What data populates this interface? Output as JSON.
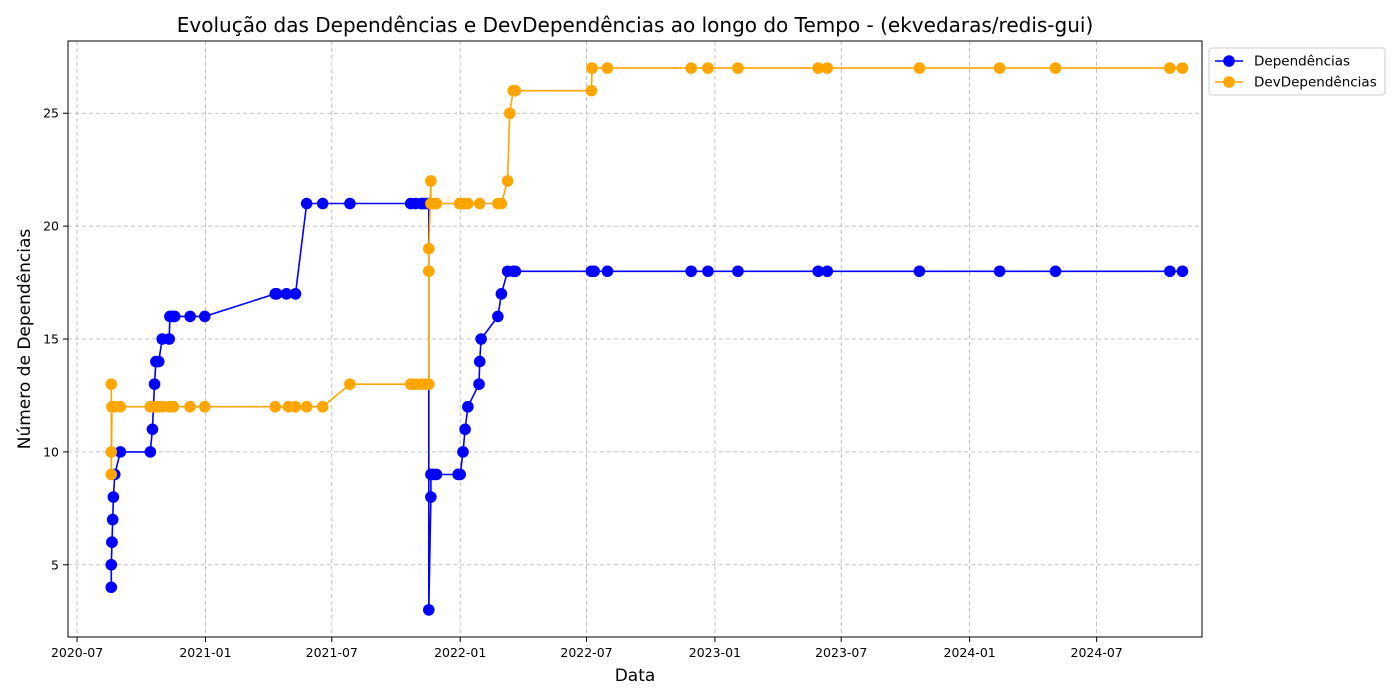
{
  "chart_data": {
    "type": "line",
    "title": "Evolução das Dependências e DevDependências ao longo do Tempo - (ekvedaras/redis-gui)",
    "xlabel": "Data",
    "ylabel": "Número de Dependências",
    "x_range": [
      "2020-06-18",
      "2024-11-29"
    ],
    "ylim": [
      1.8,
      28.2
    ],
    "grid": true,
    "legend_position": "top-right outside plot",
    "x_ticks": [
      {
        "date": "2020-07-01",
        "label": "2020-07"
      },
      {
        "date": "2021-01-01",
        "label": "2021-01"
      },
      {
        "date": "2021-07-01",
        "label": "2021-07"
      },
      {
        "date": "2022-01-01",
        "label": "2022-01"
      },
      {
        "date": "2022-07-01",
        "label": "2022-07"
      },
      {
        "date": "2023-01-01",
        "label": "2023-01"
      },
      {
        "date": "2023-07-01",
        "label": "2023-07"
      },
      {
        "date": "2024-01-01",
        "label": "2024-01"
      },
      {
        "date": "2024-07-01",
        "label": "2024-07"
      }
    ],
    "y_ticks": [
      5,
      10,
      15,
      20,
      25
    ],
    "series": [
      {
        "name": "Dependências",
        "color": "#0000ff",
        "points": [
          [
            "2020-08-19",
            4
          ],
          [
            "2020-08-19",
            5
          ],
          [
            "2020-08-20",
            6
          ],
          [
            "2020-08-20",
            6
          ],
          [
            "2020-08-21",
            7
          ],
          [
            "2020-08-22",
            8
          ],
          [
            "2020-08-24",
            9
          ],
          [
            "2020-09-01",
            10
          ],
          [
            "2020-10-14",
            10
          ],
          [
            "2020-10-17",
            11
          ],
          [
            "2020-10-20",
            13
          ],
          [
            "2020-10-22",
            14
          ],
          [
            "2020-10-26",
            14
          ],
          [
            "2020-10-31",
            15
          ],
          [
            "2020-11-10",
            15
          ],
          [
            "2020-11-11",
            16
          ],
          [
            "2020-11-13",
            16
          ],
          [
            "2020-11-16",
            16
          ],
          [
            "2020-11-18",
            16
          ],
          [
            "2020-12-10",
            16
          ],
          [
            "2020-12-31",
            16
          ],
          [
            "2021-04-11",
            17
          ],
          [
            "2021-04-13",
            17
          ],
          [
            "2021-04-27",
            17
          ],
          [
            "2021-05-10",
            17
          ],
          [
            "2021-05-26",
            21
          ],
          [
            "2021-06-18",
            21
          ],
          [
            "2021-07-27",
            21
          ],
          [
            "2021-10-22",
            21
          ],
          [
            "2021-10-29",
            21
          ],
          [
            "2021-11-06",
            21
          ],
          [
            "2021-11-09",
            21
          ],
          [
            "2021-11-13",
            21
          ],
          [
            "2021-11-17",
            21
          ],
          [
            "2021-11-17",
            3
          ],
          [
            "2021-11-20",
            8
          ],
          [
            "2021-11-20",
            9
          ],
          [
            "2021-11-23",
            9
          ],
          [
            "2021-11-28",
            9
          ],
          [
            "2021-12-29",
            9
          ],
          [
            "2022-01-01",
            9
          ],
          [
            "2022-01-05",
            10
          ],
          [
            "2022-01-08",
            11
          ],
          [
            "2022-01-12",
            12
          ],
          [
            "2022-01-28",
            13
          ],
          [
            "2022-01-29",
            14
          ],
          [
            "2022-01-31",
            15
          ],
          [
            "2022-02-24",
            16
          ],
          [
            "2022-03-01",
            17
          ],
          [
            "2022-03-10",
            18
          ],
          [
            "2022-03-18",
            18
          ],
          [
            "2022-03-21",
            18
          ],
          [
            "2022-07-08",
            18
          ],
          [
            "2022-07-12",
            18
          ],
          [
            "2022-07-31",
            18
          ],
          [
            "2022-11-28",
            18
          ],
          [
            "2022-12-22",
            18
          ],
          [
            "2023-02-03",
            18
          ],
          [
            "2023-05-29",
            18
          ],
          [
            "2023-06-11",
            18
          ],
          [
            "2023-10-21",
            18
          ],
          [
            "2024-02-13",
            18
          ],
          [
            "2024-05-03",
            18
          ],
          [
            "2024-10-14",
            18
          ],
          [
            "2024-11-01",
            18
          ]
        ]
      },
      {
        "name": "DevDependências",
        "color": "#ffa500",
        "points": [
          [
            "2020-08-19",
            13
          ],
          [
            "2020-08-19",
            10
          ],
          [
            "2020-08-19",
            9
          ],
          [
            "2020-08-20",
            12
          ],
          [
            "2020-08-22",
            12
          ],
          [
            "2020-08-24",
            12
          ],
          [
            "2020-09-01",
            12
          ],
          [
            "2020-10-14",
            12
          ],
          [
            "2020-10-17",
            12
          ],
          [
            "2020-10-20",
            12
          ],
          [
            "2020-10-22",
            12
          ],
          [
            "2020-10-26",
            12
          ],
          [
            "2020-10-31",
            12
          ],
          [
            "2020-11-10",
            12
          ],
          [
            "2020-11-11",
            12
          ],
          [
            "2020-11-13",
            12
          ],
          [
            "2020-11-16",
            12
          ],
          [
            "2020-12-10",
            12
          ],
          [
            "2020-12-31",
            12
          ],
          [
            "2021-04-11",
            12
          ],
          [
            "2021-04-30",
            12
          ],
          [
            "2021-05-10",
            12
          ],
          [
            "2021-05-26",
            12
          ],
          [
            "2021-06-18",
            12
          ],
          [
            "2021-07-27",
            13
          ],
          [
            "2021-10-22",
            13
          ],
          [
            "2021-10-29",
            13
          ],
          [
            "2021-11-06",
            13
          ],
          [
            "2021-11-13",
            13
          ],
          [
            "2021-11-17",
            13
          ],
          [
            "2021-11-17",
            18
          ],
          [
            "2021-11-17",
            19
          ],
          [
            "2021-11-20",
            22
          ],
          [
            "2021-11-20",
            21
          ],
          [
            "2021-11-23",
            21
          ],
          [
            "2021-11-28",
            21
          ],
          [
            "2021-12-31",
            21
          ],
          [
            "2022-01-05",
            21
          ],
          [
            "2022-01-08",
            21
          ],
          [
            "2022-01-12",
            21
          ],
          [
            "2022-01-29",
            21
          ],
          [
            "2022-02-24",
            21
          ],
          [
            "2022-03-01",
            21
          ],
          [
            "2022-03-10",
            22
          ],
          [
            "2022-03-13",
            25
          ],
          [
            "2022-03-18",
            26
          ],
          [
            "2022-03-21",
            26
          ],
          [
            "2022-07-08",
            26
          ],
          [
            "2022-07-09",
            27
          ],
          [
            "2022-07-31",
            27
          ],
          [
            "2022-11-28",
            27
          ],
          [
            "2022-12-22",
            27
          ],
          [
            "2023-02-03",
            27
          ],
          [
            "2023-05-29",
            27
          ],
          [
            "2023-06-11",
            27
          ],
          [
            "2023-10-21",
            27
          ],
          [
            "2024-02-13",
            27
          ],
          [
            "2024-05-03",
            27
          ],
          [
            "2024-10-14",
            27
          ],
          [
            "2024-11-01",
            27
          ]
        ]
      }
    ]
  }
}
